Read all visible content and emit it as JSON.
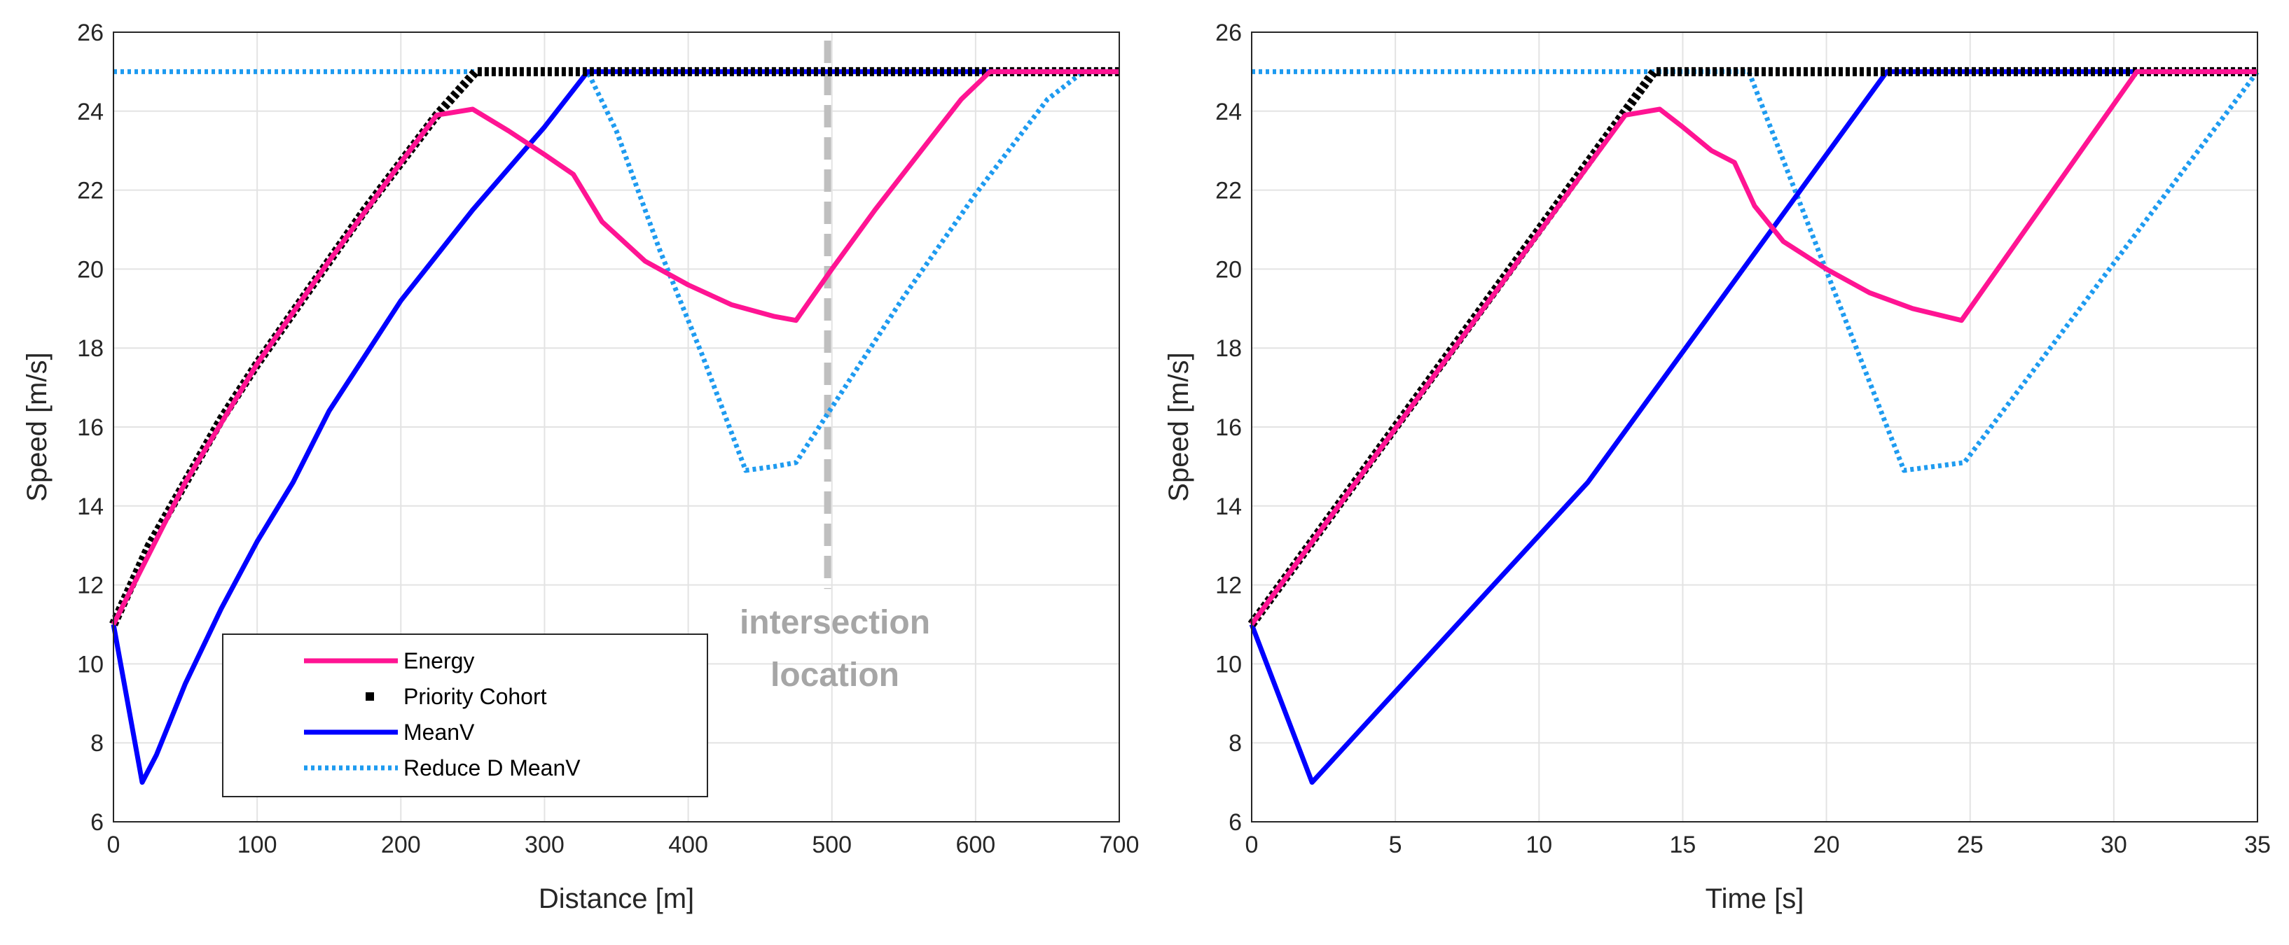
{
  "chart_data": [
    {
      "type": "line",
      "xlabel": "Distance [m]",
      "ylabel": "Speed [m/s]",
      "xlim": [
        0,
        700
      ],
      "ylim": [
        6,
        26
      ],
      "xticks": [
        0,
        100,
        200,
        300,
        400,
        500,
        600,
        700
      ],
      "yticks": [
        6,
        8,
        10,
        12,
        14,
        16,
        18,
        20,
        22,
        24,
        26
      ],
      "grid": true,
      "legend": "bottom-left",
      "annotation": {
        "lines": [
          "intersection",
          "location"
        ],
        "x": 497,
        "color": "#bfbfbf"
      },
      "series": [
        {
          "name": "Energy",
          "color": "#ff1493",
          "style": "solid",
          "x": [
            0,
            50,
            100,
            150,
            200,
            225,
            250,
            275,
            300,
            320,
            340,
            370,
            400,
            430,
            460,
            475,
            500,
            530,
            560,
            590,
            610,
            700
          ],
          "y": [
            11,
            14.6,
            17.6,
            20.2,
            22.7,
            23.9,
            24.05,
            23.5,
            22.9,
            22.4,
            21.2,
            20.2,
            19.6,
            19.1,
            18.8,
            18.7,
            20.0,
            21.5,
            22.9,
            24.3,
            25,
            25
          ]
        },
        {
          "name": "Priority Cohort",
          "color": "#000000",
          "style": "dotted",
          "x": [
            0,
            25,
            50,
            75,
            100,
            125,
            150,
            175,
            200,
            225,
            252,
            700
          ],
          "y": [
            11,
            13.0,
            14.6,
            16.2,
            17.6,
            18.9,
            20.2,
            21.5,
            22.7,
            23.9,
            25,
            25
          ]
        },
        {
          "name": "MeanV",
          "color": "#0000ff",
          "style": "solid",
          "x": [
            0,
            10,
            20,
            30,
            50,
            75,
            100,
            125,
            150,
            200,
            250,
            300,
            330,
            700
          ],
          "y": [
            11,
            9.0,
            7.0,
            7.7,
            9.5,
            11.4,
            13.1,
            14.6,
            16.4,
            19.2,
            21.5,
            23.6,
            25,
            25
          ]
        },
        {
          "name": "Reduce D MeanV",
          "color": "#1e9bf0",
          "style": "dotted",
          "x": [
            0,
            330,
            350,
            380,
            410,
            440,
            460,
            475,
            500,
            550,
            600,
            650,
            675,
            700
          ],
          "y": [
            25,
            25,
            23.5,
            20.5,
            17.8,
            14.9,
            15.0,
            15.1,
            16.5,
            19.3,
            21.9,
            24.3,
            25,
            25
          ]
        }
      ]
    },
    {
      "type": "line",
      "xlabel": "Time [s]",
      "ylabel": "Speed [m/s]",
      "xlim": [
        0,
        35
      ],
      "ylim": [
        6,
        26
      ],
      "xticks": [
        0,
        5,
        10,
        15,
        20,
        25,
        30,
        35
      ],
      "yticks": [
        6,
        8,
        10,
        12,
        14,
        16,
        18,
        20,
        22,
        24,
        26
      ],
      "grid": true,
      "series": [
        {
          "name": "Energy",
          "color": "#ff1493",
          "style": "solid",
          "x": [
            0,
            13.0,
            14.2,
            15.0,
            16.0,
            16.8,
            17.5,
            18.5,
            20.0,
            21.5,
            23.0,
            24.7,
            30.8,
            35
          ],
          "y": [
            11,
            23.9,
            24.05,
            23.6,
            23.0,
            22.7,
            21.6,
            20.7,
            20.0,
            19.4,
            19.0,
            18.7,
            25,
            25
          ]
        },
        {
          "name": "Priority Cohort",
          "color": "#000000",
          "style": "dotted",
          "x": [
            0,
            14.0,
            35
          ],
          "y": [
            11,
            25,
            25
          ]
        },
        {
          "name": "MeanV",
          "color": "#0000ff",
          "style": "solid",
          "x": [
            0,
            2.1,
            11.7,
            22.1,
            35
          ],
          "y": [
            11,
            7.0,
            14.6,
            25,
            25
          ]
        },
        {
          "name": "Reduce D MeanV",
          "color": "#1e9bf0",
          "style": "dotted",
          "x": [
            0,
            17.3,
            22.7,
            24.8,
            35
          ],
          "y": [
            25,
            25,
            14.9,
            15.1,
            25
          ]
        }
      ]
    }
  ]
}
